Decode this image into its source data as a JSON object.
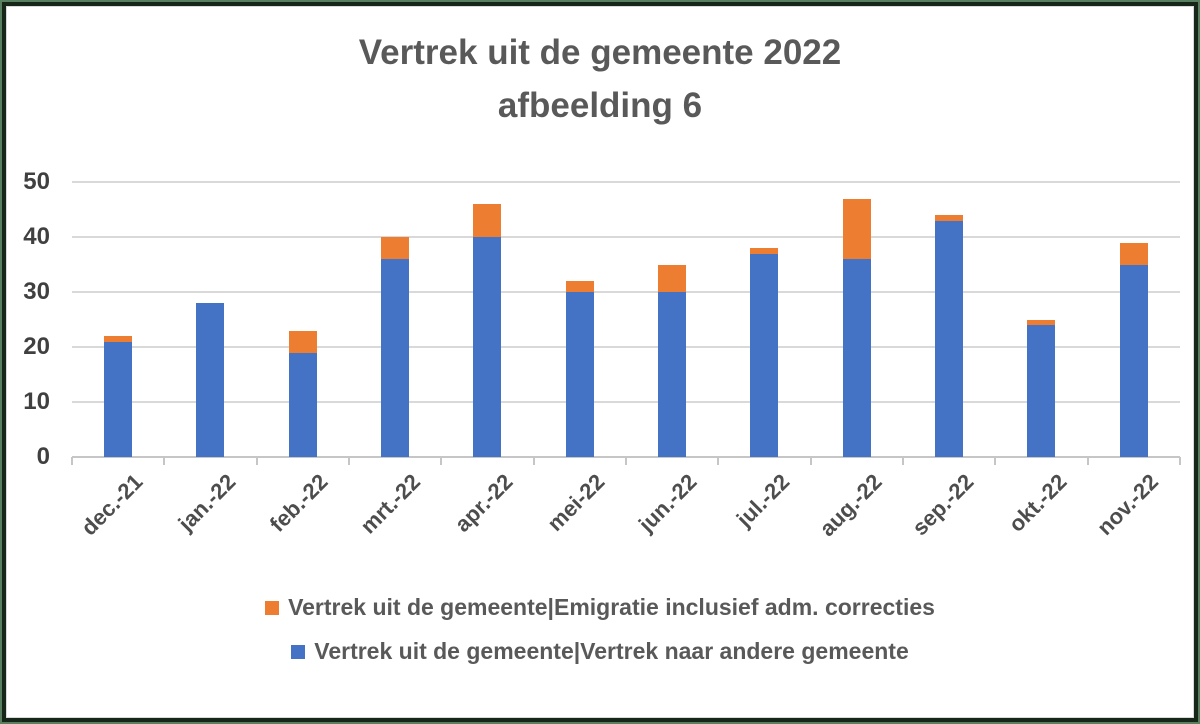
{
  "title": {
    "line1": "Vertrek uit de gemeente 2022",
    "line2": "afbeelding 6"
  },
  "chart_data": {
    "type": "bar",
    "stacked": true,
    "title": "Vertrek uit de gemeente 2022",
    "subtitle": "afbeelding 6",
    "xlabel": "",
    "ylabel": "",
    "categories": [
      "dec.-21",
      "jan.-22",
      "feb.-22",
      "mrt.-22",
      "apr.-22",
      "mei-22",
      "jun.-22",
      "jul.-22",
      "aug.-22",
      "sep.-22",
      "okt.-22",
      "nov.-22"
    ],
    "series": [
      {
        "name": "Vertrek uit de gemeente|Vertrek naar andere gemeente",
        "color": "#4472C4",
        "values": [
          21,
          28,
          19,
          36,
          40,
          30,
          30,
          37,
          36,
          43,
          24,
          35
        ]
      },
      {
        "name": "Vertrek uit de gemeente|Emigratie inclusief adm. correcties",
        "color": "#ED7D31",
        "values": [
          1,
          0,
          4,
          4,
          6,
          2,
          5,
          1,
          11,
          1,
          1,
          4
        ]
      }
    ],
    "totals": [
      22,
      28,
      23,
      40,
      46,
      32,
      35,
      38,
      47,
      44,
      25,
      39
    ],
    "ylim": [
      0,
      50
    ],
    "ytick_interval": 10,
    "yticks": [
      "0",
      "10",
      "20",
      "30",
      "40",
      "50"
    ],
    "grid": true,
    "legend_position": "bottom"
  },
  "legend": {
    "items": [
      {
        "label": "Vertrek uit de gemeente|Emigratie inclusief adm. correcties",
        "color": "#ED7D31"
      },
      {
        "label": "Vertrek uit de gemeente|Vertrek naar andere gemeente",
        "color": "#4472C4"
      }
    ]
  },
  "colors": {
    "blue": "#4472C4",
    "orange": "#ED7D31",
    "text": "#595959",
    "axis_text": "#404040",
    "gridline": "#d9d9d9",
    "frame_outer_green": "#587f5f",
    "frame_inner_dark": "#16271a"
  }
}
